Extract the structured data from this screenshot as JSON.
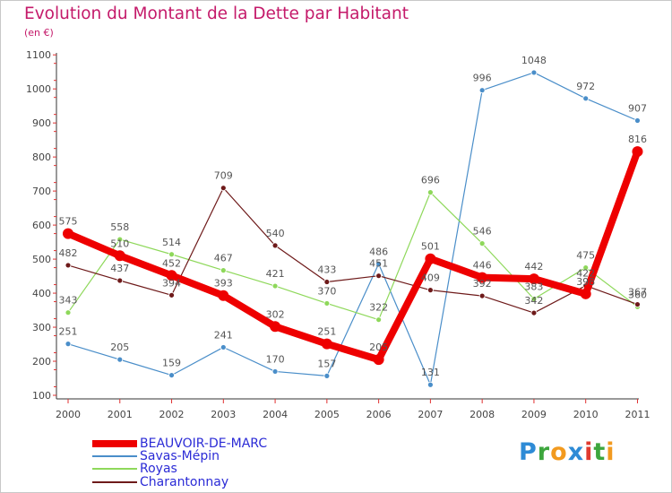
{
  "title": "Evolution du Montant de la Dette par Habitant",
  "unit": "(en €)",
  "brand": {
    "letters": [
      {
        "ch": "P",
        "color": "#2e8bd6"
      },
      {
        "ch": "r",
        "color": "#3da63d"
      },
      {
        "ch": "o",
        "color": "#f29a1f"
      },
      {
        "ch": "x",
        "color": "#2e8bd6"
      },
      {
        "ch": "i",
        "color": "#e03a2f"
      },
      {
        "ch": "t",
        "color": "#3da63d"
      },
      {
        "ch": "i",
        "color": "#f29a1f"
      }
    ]
  },
  "chart_data": {
    "type": "line",
    "title": "Evolution du Montant de la Dette par Habitant",
    "ylabel": "(en €)",
    "xlabel": "",
    "ylim": [
      100,
      1100
    ],
    "yticks": [
      "100",
      "200",
      "300",
      "400",
      "500",
      "600",
      "700",
      "800",
      "900",
      "1000",
      "1100"
    ],
    "categories": [
      "2000",
      "2001",
      "2002",
      "2003",
      "2004",
      "2005",
      "2006",
      "2007",
      "2008",
      "2009",
      "2010",
      "2011"
    ],
    "grid": false,
    "legend_position": "bottom-left",
    "series": [
      {
        "name": "Savas-Mépin",
        "color": "#4a8ec9",
        "values": [
          251,
          205,
          159,
          241,
          170,
          157,
          486,
          131,
          996,
          1048,
          972,
          907
        ]
      },
      {
        "name": "Royas",
        "color": "#8ed85a",
        "values": [
          343,
          558,
          514,
          467,
          421,
          370,
          322,
          696,
          546,
          383,
          475,
          360
        ]
      },
      {
        "name": "Charantonnay",
        "color": "#6e1a1a",
        "values": [
          482,
          437,
          394,
          709,
          540,
          433,
          451,
          409,
          392,
          342,
          422,
          367
        ]
      },
      {
        "name": "BEAUVOIR-DE-MARC",
        "color": "#ee0000",
        "values": [
          575,
          510,
          452,
          393,
          302,
          251,
          205,
          501,
          446,
          442,
          398,
          816
        ]
      }
    ],
    "point_labels": [
      {
        "series": "Savas-Mépin",
        "text": [
          "251",
          "205",
          "159",
          "241",
          "170",
          "157",
          "486",
          "131",
          "996",
          "1048",
          "972",
          "907"
        ]
      },
      {
        "series": "Royas",
        "text": [
          "343",
          "558",
          "514",
          "467",
          "421",
          "370",
          "322",
          "696",
          "546",
          "383",
          "475",
          "360"
        ]
      },
      {
        "series": "Charantonnay",
        "text": [
          "482",
          "437",
          "394",
          "709",
          "540",
          "433",
          "451",
          "409",
          "392",
          "342",
          "422",
          "367"
        ]
      },
      {
        "series": "BEAUVOIR-DE-MARC",
        "text": [
          "575",
          "510",
          "452",
          "393",
          "302",
          "251",
          "205",
          "501",
          "446",
          "442",
          "398",
          "816"
        ]
      }
    ],
    "legend": [
      {
        "label": "BEAUVOIR-DE-MARC",
        "color": "#ee0000"
      },
      {
        "label": "Savas-Mépin",
        "color": "#4a8ec9"
      },
      {
        "label": "Royas",
        "color": "#8ed85a"
      },
      {
        "label": "Charantonnay",
        "color": "#6e1a1a"
      }
    ]
  }
}
